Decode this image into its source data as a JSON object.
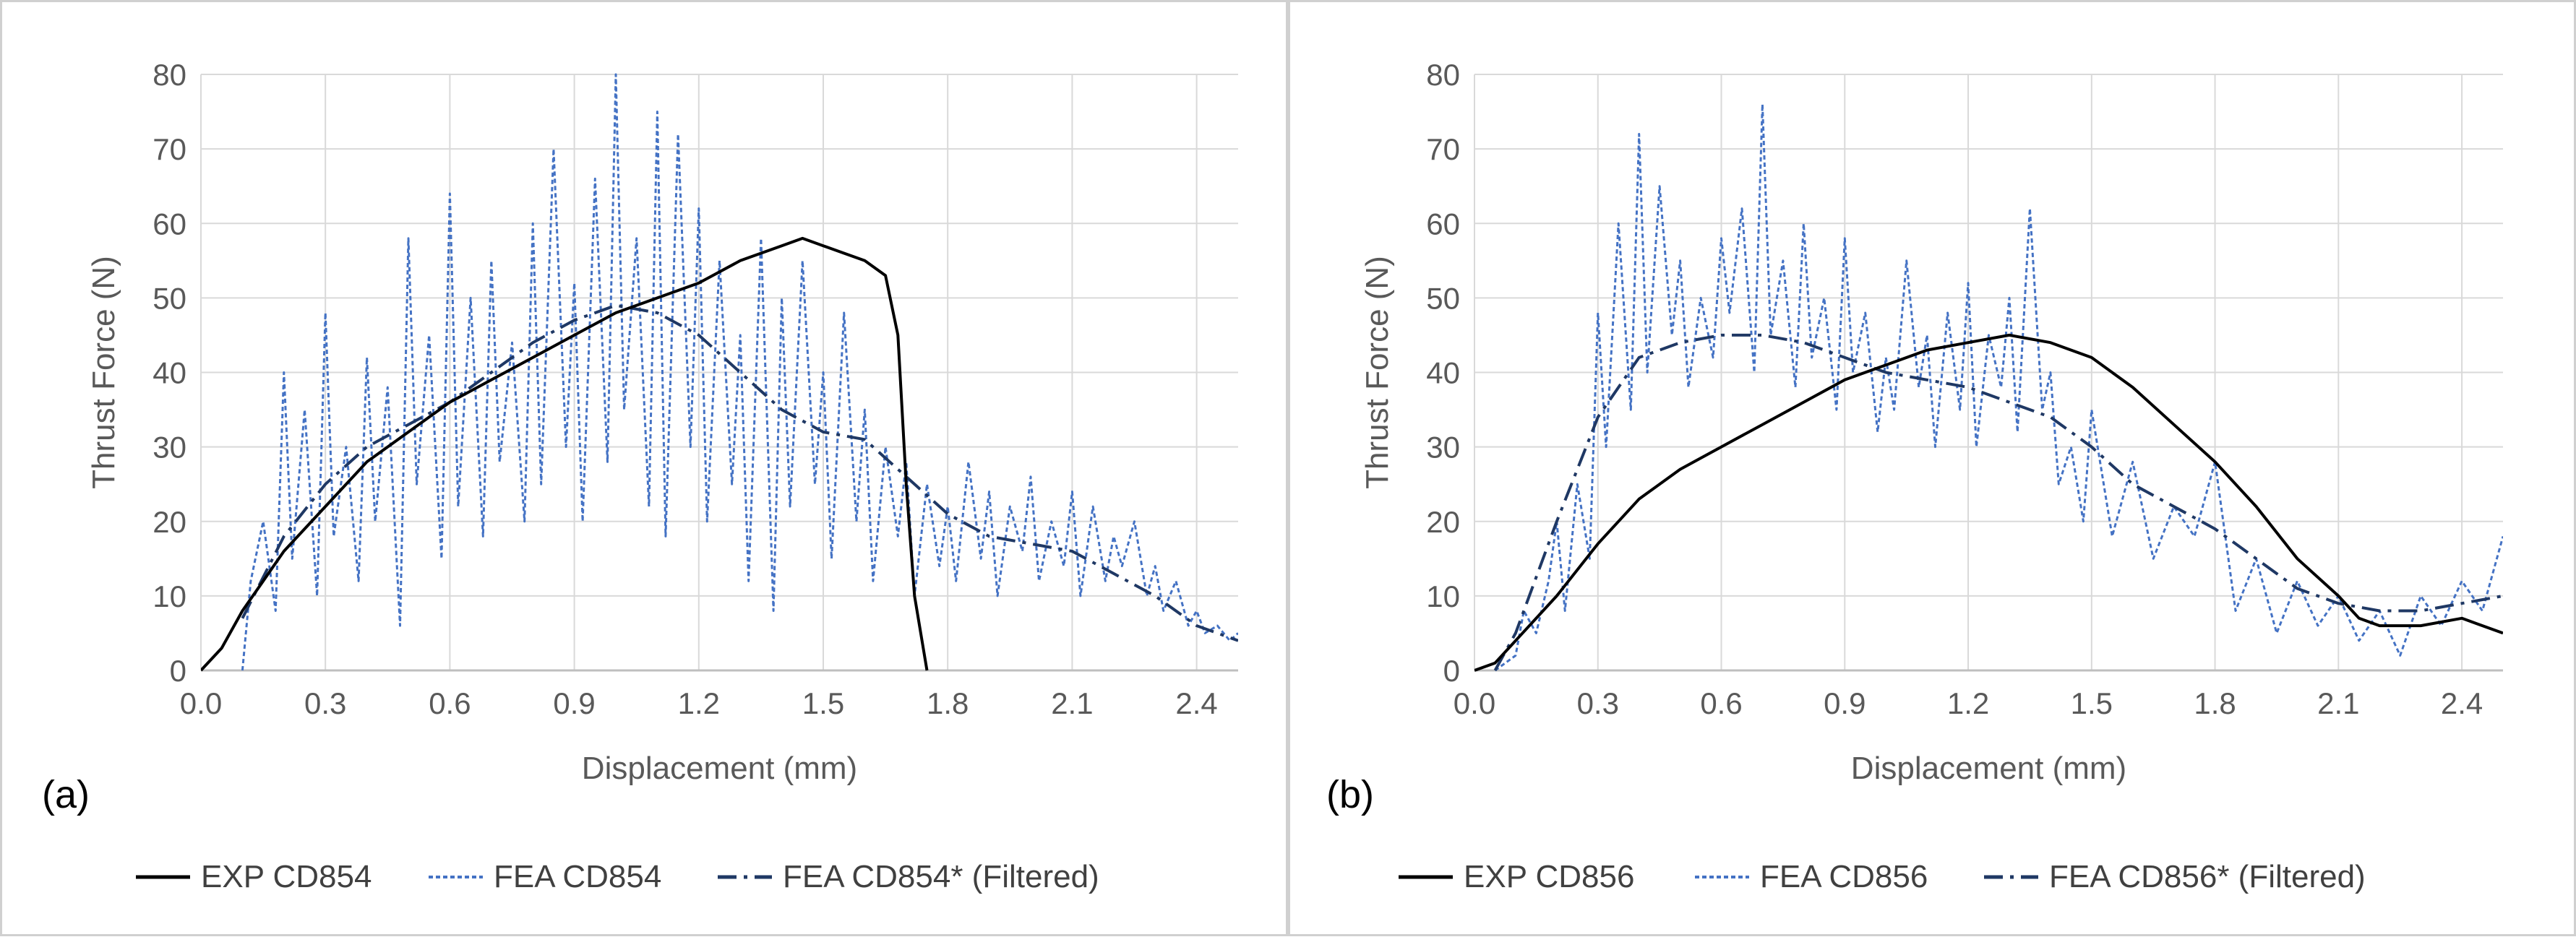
{
  "chart_data": [
    {
      "type": "line",
      "panel_label": "(a)",
      "xlabel": "Displacement (mm)",
      "ylabel": "Thrust Force (N)",
      "xlim": [
        0,
        2.5
      ],
      "ylim": [
        0,
        80
      ],
      "xticks": [
        "0.0",
        "0.3",
        "0.6",
        "0.9",
        "1.2",
        "1.5",
        "1.8",
        "2.1",
        "2.4"
      ],
      "yticks": [
        "0",
        "10",
        "20",
        "30",
        "40",
        "50",
        "60",
        "70",
        "80"
      ],
      "grid": true,
      "legend_position": "bottom",
      "series": [
        {
          "name": "EXP CD854",
          "style": "solid",
          "color": "#000000",
          "x": [
            0.0,
            0.05,
            0.1,
            0.15,
            0.2,
            0.3,
            0.4,
            0.5,
            0.6,
            0.7,
            0.8,
            0.9,
            1.0,
            1.1,
            1.2,
            1.3,
            1.4,
            1.45,
            1.5,
            1.55,
            1.6,
            1.65,
            1.68,
            1.7,
            1.72,
            1.75
          ],
          "y": [
            0,
            3,
            8,
            12,
            16,
            22,
            28,
            32,
            36,
            39,
            42,
            45,
            48,
            50,
            52,
            55,
            57,
            58,
            57,
            56,
            55,
            53,
            45,
            25,
            10,
            0
          ]
        },
        {
          "name": "FEA CD854",
          "style": "dotted",
          "color": "#4472C4",
          "x": [
            0.1,
            0.12,
            0.15,
            0.18,
            0.2,
            0.22,
            0.25,
            0.28,
            0.3,
            0.32,
            0.35,
            0.38,
            0.4,
            0.42,
            0.45,
            0.48,
            0.5,
            0.52,
            0.55,
            0.58,
            0.6,
            0.62,
            0.65,
            0.68,
            0.7,
            0.72,
            0.75,
            0.78,
            0.8,
            0.82,
            0.85,
            0.88,
            0.9,
            0.92,
            0.95,
            0.98,
            1.0,
            1.02,
            1.05,
            1.08,
            1.1,
            1.12,
            1.15,
            1.18,
            1.2,
            1.22,
            1.25,
            1.28,
            1.3,
            1.32,
            1.35,
            1.38,
            1.4,
            1.42,
            1.45,
            1.48,
            1.5,
            1.52,
            1.55,
            1.58,
            1.6,
            1.62,
            1.65,
            1.68,
            1.7,
            1.72,
            1.75,
            1.78,
            1.8,
            1.82,
            1.85,
            1.88,
            1.9,
            1.92,
            1.95,
            1.98,
            2.0,
            2.02,
            2.05,
            2.08,
            2.1,
            2.12,
            2.15,
            2.18,
            2.2,
            2.22,
            2.25,
            2.28,
            2.3,
            2.32,
            2.35,
            2.38,
            2.4,
            2.42,
            2.45,
            2.48,
            2.5
          ],
          "y": [
            0,
            12,
            20,
            8,
            40,
            15,
            35,
            10,
            48,
            18,
            30,
            12,
            42,
            20,
            38,
            6,
            58,
            25,
            45,
            15,
            64,
            22,
            50,
            18,
            55,
            28,
            44,
            20,
            60,
            25,
            70,
            30,
            52,
            20,
            66,
            28,
            80,
            35,
            58,
            22,
            75,
            18,
            72,
            30,
            62,
            20,
            55,
            25,
            45,
            12,
            58,
            8,
            50,
            22,
            55,
            25,
            40,
            15,
            48,
            20,
            35,
            12,
            30,
            18,
            28,
            10,
            25,
            14,
            22,
            12,
            28,
            15,
            24,
            10,
            22,
            16,
            26,
            12,
            20,
            14,
            24,
            10,
            22,
            12,
            18,
            14,
            20,
            10,
            14,
            8,
            12,
            6,
            8,
            5,
            6,
            4,
            5
          ]
        },
        {
          "name": "FEA CD854* (Filtered)",
          "style": "dashdot",
          "color": "#1F3864",
          "x": [
            0.1,
            0.2,
            0.3,
            0.4,
            0.5,
            0.6,
            0.7,
            0.8,
            0.9,
            1.0,
            1.1,
            1.2,
            1.3,
            1.4,
            1.5,
            1.6,
            1.7,
            1.8,
            1.9,
            2.0,
            2.1,
            2.2,
            2.3,
            2.4,
            2.5
          ],
          "y": [
            7,
            18,
            25,
            30,
            33,
            36,
            40,
            44,
            47,
            49,
            48,
            45,
            40,
            35,
            32,
            31,
            26,
            21,
            18,
            17,
            16,
            13,
            10,
            6,
            4
          ]
        }
      ]
    },
    {
      "type": "line",
      "panel_label": "(b)",
      "xlabel": "Displacement (mm)",
      "ylabel": "Thrust Force (N)",
      "xlim": [
        0,
        2.5
      ],
      "ylim": [
        0,
        80
      ],
      "xticks": [
        "0.0",
        "0.3",
        "0.6",
        "0.9",
        "1.2",
        "1.5",
        "1.8",
        "2.1",
        "2.4"
      ],
      "yticks": [
        "0",
        "10",
        "20",
        "30",
        "40",
        "50",
        "60",
        "70",
        "80"
      ],
      "grid": true,
      "legend_position": "bottom",
      "series": [
        {
          "name": "EXP CD856",
          "style": "solid",
          "color": "#000000",
          "x": [
            0.0,
            0.05,
            0.1,
            0.2,
            0.3,
            0.4,
            0.5,
            0.6,
            0.7,
            0.8,
            0.9,
            1.0,
            1.1,
            1.2,
            1.3,
            1.4,
            1.5,
            1.6,
            1.7,
            1.8,
            1.9,
            2.0,
            2.1,
            2.15,
            2.2,
            2.3,
            2.4,
            2.5
          ],
          "y": [
            0,
            1,
            4,
            10,
            17,
            23,
            27,
            30,
            33,
            36,
            39,
            41,
            43,
            44,
            45,
            44,
            42,
            38,
            33,
            28,
            22,
            15,
            10,
            7,
            6,
            6,
            7,
            5
          ]
        },
        {
          "name": "FEA CD856",
          "style": "dotted",
          "color": "#4472C4",
          "x": [
            0.05,
            0.1,
            0.12,
            0.15,
            0.18,
            0.2,
            0.22,
            0.25,
            0.28,
            0.3,
            0.32,
            0.35,
            0.38,
            0.4,
            0.42,
            0.45,
            0.48,
            0.5,
            0.52,
            0.55,
            0.58,
            0.6,
            0.62,
            0.65,
            0.68,
            0.7,
            0.72,
            0.75,
            0.78,
            0.8,
            0.82,
            0.85,
            0.88,
            0.9,
            0.92,
            0.95,
            0.98,
            1.0,
            1.02,
            1.05,
            1.08,
            1.1,
            1.12,
            1.15,
            1.18,
            1.2,
            1.22,
            1.25,
            1.28,
            1.3,
            1.32,
            1.35,
            1.38,
            1.4,
            1.42,
            1.45,
            1.48,
            1.5,
            1.55,
            1.6,
            1.65,
            1.7,
            1.75,
            1.8,
            1.85,
            1.9,
            1.95,
            2.0,
            2.05,
            2.1,
            2.15,
            2.2,
            2.25,
            2.3,
            2.35,
            2.4,
            2.45,
            2.5
          ],
          "y": [
            0,
            2,
            8,
            5,
            12,
            20,
            8,
            25,
            15,
            48,
            30,
            60,
            35,
            72,
            40,
            65,
            45,
            55,
            38,
            50,
            42,
            58,
            48,
            62,
            40,
            76,
            45,
            55,
            38,
            60,
            42,
            50,
            35,
            58,
            40,
            48,
            32,
            42,
            35,
            55,
            38,
            45,
            30,
            48,
            35,
            52,
            30,
            45,
            38,
            50,
            32,
            62,
            35,
            40,
            25,
            30,
            20,
            35,
            18,
            28,
            15,
            22,
            18,
            28,
            8,
            15,
            5,
            12,
            6,
            10,
            4,
            8,
            2,
            10,
            6,
            12,
            8,
            18
          ]
        },
        {
          "name": "FEA CD856* (Filtered)",
          "style": "dashdot",
          "color": "#1F3864",
          "x": [
            0.05,
            0.1,
            0.2,
            0.3,
            0.4,
            0.5,
            0.6,
            0.7,
            0.8,
            0.9,
            1.0,
            1.1,
            1.2,
            1.3,
            1.4,
            1.5,
            1.6,
            1.7,
            1.8,
            1.9,
            2.0,
            2.1,
            2.2,
            2.3,
            2.4,
            2.5
          ],
          "y": [
            0,
            5,
            20,
            34,
            42,
            44,
            45,
            45,
            44,
            42,
            40,
            39,
            38,
            36,
            34,
            30,
            25,
            22,
            19,
            15,
            11,
            9,
            8,
            8,
            9,
            10
          ]
        }
      ]
    }
  ]
}
